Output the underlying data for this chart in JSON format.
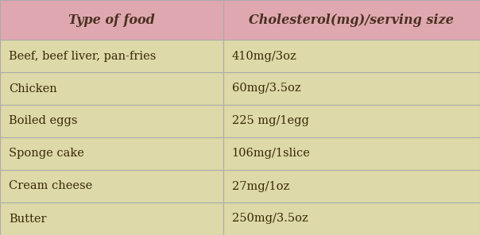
{
  "header": [
    "Type of food",
    "Cholesterol(mg)/serving size"
  ],
  "rows": [
    [
      "Beef, beef liver, pan-fries",
      "410mg/3oz"
    ],
    [
      "Chicken",
      "60mg/3.5oz"
    ],
    [
      "Boiled eggs",
      "225 mg/1egg"
    ],
    [
      "Sponge cake",
      "106mg/1slice"
    ],
    [
      "Cream cheese",
      "27mg/1oz"
    ],
    [
      "Butter",
      "250mg/3.5oz"
    ]
  ],
  "header_bg_color": "#DFA8B0",
  "row_bg_color": "#DDD9A8",
  "header_text_color": "#4A3020",
  "row_text_color": "#3A2808",
  "border_color": "#AAAAAA",
  "col_split": 0.465,
  "header_fontsize": 11.5,
  "row_fontsize": 10.5,
  "fig_width": 6.04,
  "fig_height": 2.96,
  "dpi": 100
}
